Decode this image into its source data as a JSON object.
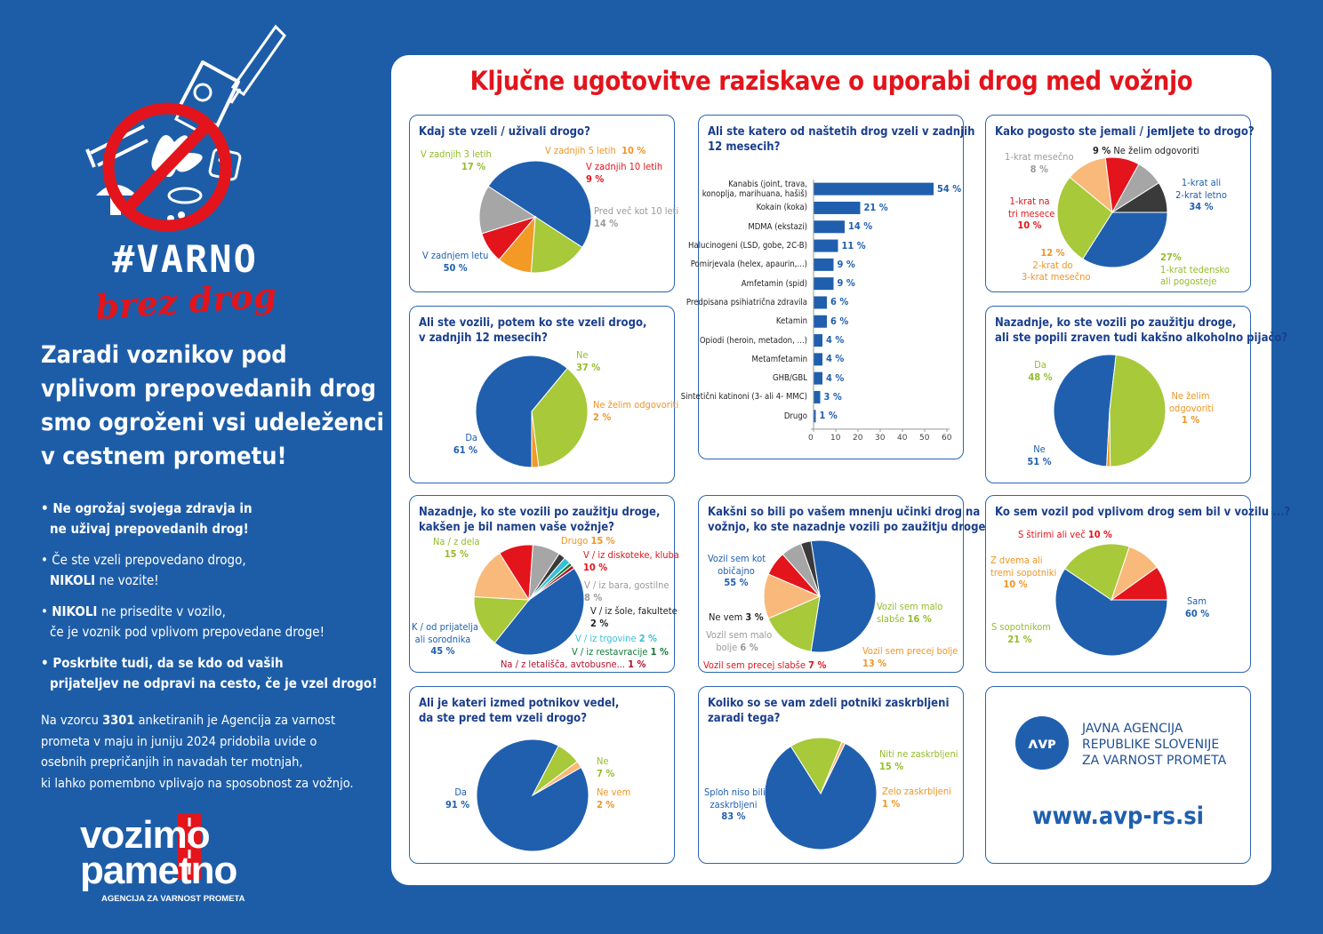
{
  "brand": {
    "hashtag": "#VARNO",
    "script": "brez drog",
    "vozimo_line1": "vozimo",
    "vozimo_line2": "pametno",
    "vozimo_sub": "AGENCIJA ZA VARNOST PROMETA",
    "red": "#e3141c",
    "blue": "#1d5da8"
  },
  "tagline": [
    "Zaradi voznikov pod",
    "vplivom prepovedanih drog",
    "smo ogroženi vsi udeleženci",
    "v cestnem prometu!"
  ],
  "bullets": {
    "b1_l1": "• Ne ogrožaj svojega zdravja in",
    "b1_l2": "ne uživaj prepovedanih drog!",
    "b2_l1": "• Če ste vzeli prepovedano drogo,",
    "b2_l2_bold": "NIKOLI",
    "b2_l2_rest": " ne vozite!",
    "b3_l1_prefix": "• ",
    "b3_l1_bold": "NIKOLI",
    "b3_l1_rest": " ne prisedite v vozilo,",
    "b3_l2": "če je voznik pod vplivom prepovedane droge!",
    "b4_l1": "• Poskrbite tudi, da se kdo od vaših",
    "b4_l2": "prijateljev ne odpravi na cesto, če je vzel drogo!"
  },
  "intro": {
    "l1_a": "Na vzorcu ",
    "l1_b": "3301",
    "l1_c": " anketiranih je Agencija za varnost",
    "l2": "prometa v maju in juniju 2024 pridobila uvide o",
    "l3": "osebnih prepričanjih in navadah ter motnjah,",
    "l4": "ki lahko pomembno vplivajo na sposobnost za vožnjo."
  },
  "main_title": "Ključne ugotovitve raziskave o uporabi drog med vožnjo",
  "agency": {
    "line1": "JAVNA AGENCIJA",
    "line2": "REPUBLIKE SLOVENIJE",
    "line3": "ZA VARNOST PROMETA",
    "website": "www.avp-rs.si"
  },
  "colors": {
    "blue": "#1f5fae",
    "green": "#a7c93a",
    "orange": "#f29a25",
    "red": "#e3141c",
    "gray": "#a6a6a6",
    "dark": "#3a3a3a",
    "lorange": "#f9b97a",
    "cyan": "#37bfd8",
    "dgreen": "#137a3a",
    "crimson": "#b0122f"
  },
  "chart_data": [
    {
      "id": "c1",
      "type": "pie",
      "title": "Kdaj ste vzeli / uživali drogo?",
      "slices": [
        {
          "label": "V zadnjem letu",
          "value": 50,
          "display": "50 %",
          "color": "blue"
        },
        {
          "label": "V zadnjih 3 letih",
          "value": 17,
          "display": "17 %",
          "color": "green"
        },
        {
          "label": "V zadnjih 5 letih",
          "value": 10,
          "display": "10 %",
          "color": "orange"
        },
        {
          "label": "V zadnjih 10 letih",
          "value": 9,
          "display": "9 %",
          "color": "red"
        },
        {
          "label": "Pred več kot 10 leti",
          "value": 14,
          "display": "14 %",
          "color": "gray"
        }
      ]
    },
    {
      "id": "c2",
      "type": "bar",
      "title_l1": "Ali ste katero od naštetih drog vzeli v zadnjih",
      "title_l2": "12 mesecih?",
      "categories": [
        [
          "Kanabis (joint, trava,",
          "konoplja, marihuana, hašiš)"
        ],
        [
          "Kokain (koka)"
        ],
        [
          "MDMA (ekstazi)"
        ],
        [
          "Halucinogeni (LSD, gobe, 2C-B)"
        ],
        [
          "Pomirjevala (helex, apaurin,...)"
        ],
        [
          "Amfetamin (spid)"
        ],
        [
          "Predpisana psihiatrična zdravila"
        ],
        [
          "Ketamin"
        ],
        [
          "Opiodi (heroin, metadon, ...)"
        ],
        [
          "Metamfetamin"
        ],
        [
          "GHB/GBL"
        ],
        [
          "Sintetični katinoni (3- ali 4- MMC)"
        ],
        [
          "Drugo"
        ]
      ],
      "values": [
        54,
        21,
        14,
        11,
        9,
        9,
        6,
        6,
        4,
        4,
        4,
        3,
        1
      ],
      "value_labels": [
        "54 %",
        "21 %",
        "14 %",
        "11 %",
        "9 %",
        "9 %",
        "6 %",
        "6 %",
        "4 %",
        "4 %",
        "4 %",
        "3 %",
        "1 %"
      ],
      "xticks": [
        "0",
        "10",
        "20",
        "30",
        "40",
        "50",
        "60"
      ],
      "xlim": [
        0,
        60
      ]
    },
    {
      "id": "c3",
      "type": "pie",
      "title": "Kako pogosto ste jemali / jemljete to drogo?",
      "slices": [
        {
          "label": "1-krat ali 2-krat letno",
          "value": 34,
          "display": "34 %",
          "color": "blue"
        },
        {
          "label": "1-krat tedensko ali pogosteje",
          "value": 27,
          "display": "27%",
          "color": "green"
        },
        {
          "label": "2-krat do 3-krat mesečno",
          "value": 12,
          "display": "12 %",
          "color": "lorange"
        },
        {
          "label": "1-krat na tri mesece",
          "value": 10,
          "display": "10 %",
          "color": "red"
        },
        {
          "label": "1-krat mesečno",
          "value": 8,
          "display": "8 %",
          "color": "gray"
        },
        {
          "label": "Ne želim odgovoriti",
          "value": 9,
          "display": "9 %",
          "color": "dark"
        }
      ]
    },
    {
      "id": "c4",
      "type": "pie",
      "title_l1": "Ali ste vozili, potem ko ste vzeli drogo,",
      "title_l2": "v zadnjih 12 mesecih?",
      "slices": [
        {
          "label": "Da",
          "value": 61,
          "display": "61 %",
          "color": "blue"
        },
        {
          "label": "Ne",
          "value": 37,
          "display": "37 %",
          "color": "green"
        },
        {
          "label": "Ne želim odgovoriti",
          "value": 2,
          "display": "2 %",
          "color": "orange"
        }
      ]
    },
    {
      "id": "c5",
      "type": "pie",
      "title_l1": "Nazadnje, ko ste vozili po zaužitju droge,",
      "title_l2": "ali ste popili zraven tudi kakšno alkoholno pijačo?",
      "slices": [
        {
          "label": "Ne",
          "value": 51,
          "display": "51 %",
          "color": "blue"
        },
        {
          "label": "Da",
          "value": 48,
          "display": "48 %",
          "color": "green"
        },
        {
          "label": "Ne želim odgovoriti",
          "value": 1,
          "display": "1 %",
          "color": "orange"
        }
      ]
    },
    {
      "id": "c6",
      "type": "pie",
      "title_l1": "Nazadnje, ko ste vozili po zaužitju droge,",
      "title_l2": "kakšen je bil namen vaše vožnje?",
      "slices": [
        {
          "label": "K / od prijatelja ali sorodnika",
          "value": 45,
          "display": "45 %",
          "color": "blue"
        },
        {
          "label": "Na / z dela",
          "value": 15,
          "display": "15 %",
          "color": "green"
        },
        {
          "label": "Drugo",
          "value": 15,
          "display": "15 %",
          "color": "lorange"
        },
        {
          "label": "V / iz diskoteke, kluba",
          "value": 10,
          "display": "10 %",
          "color": "red"
        },
        {
          "label": "V / iz bara, gostilne",
          "value": 8,
          "display": "8 %",
          "color": "gray"
        },
        {
          "label": "V / iz šole, fakultete",
          "value": 2,
          "display": "2 %",
          "color": "dark"
        },
        {
          "label": "V / iz trgovine",
          "value": 2,
          "display": "2 %",
          "color": "cyan"
        },
        {
          "label": "V / iz restavracije",
          "value": 1,
          "display": "1 %",
          "color": "dgreen"
        },
        {
          "label": "Na / z letališča, avtobusne...",
          "value": 1,
          "display": "1 %",
          "color": "crimson"
        }
      ]
    },
    {
      "id": "c7",
      "type": "pie",
      "title_l1": "Kakšni so bili po vašem mnenju učinki drog na",
      "title_l2": "vožnjo, ko ste nazadnje vozili po zaužitju droge?",
      "slices": [
        {
          "label": "Vozil sem kot običajno",
          "value": 55,
          "display": "55 %",
          "color": "blue"
        },
        {
          "label": "Vozil sem malo slabše",
          "value": 16,
          "display": "16 %",
          "color": "green"
        },
        {
          "label": "Vozil sem precej bolje",
          "value": 13,
          "display": "13 %",
          "color": "lorange"
        },
        {
          "label": "Vozil sem precej slabše",
          "value": 7,
          "display": "7 %",
          "color": "red"
        },
        {
          "label": "Vozil sem malo bolje",
          "value": 6,
          "display": "6 %",
          "color": "gray"
        },
        {
          "label": "Ne vem",
          "value": 3,
          "display": "3 %",
          "color": "dark"
        }
      ]
    },
    {
      "id": "c8",
      "type": "pie",
      "title": "Ko sem vozil pod vplivom drog sem bil v vozilu ...?",
      "slices": [
        {
          "label": "Sam",
          "value": 60,
          "display": "60 %",
          "color": "blue"
        },
        {
          "label": "S sopotnikom",
          "value": 21,
          "display": "21 %",
          "color": "green"
        },
        {
          "label": "Z dvema ali tremi sopotniki",
          "value": 10,
          "display": "10 %",
          "color": "lorange"
        },
        {
          "label": "S štirimi ali več",
          "value": 10,
          "display": "10 %",
          "color": "red"
        }
      ]
    },
    {
      "id": "c9",
      "type": "pie",
      "title_l1": "Ali je kateri izmed potnikov vedel,",
      "title_l2": "da ste pred tem vzeli drogo?",
      "slices": [
        {
          "label": "Da",
          "value": 91,
          "display": "91 %",
          "color": "blue"
        },
        {
          "label": "Ne",
          "value": 7,
          "display": "7 %",
          "color": "green"
        },
        {
          "label": "Ne vem",
          "value": 2,
          "display": "2 %",
          "color": "lorange"
        }
      ]
    },
    {
      "id": "c10",
      "type": "pie",
      "title_l1": "Koliko so se vam zdeli potniki zaskrbljeni",
      "title_l2": "zaradi tega?",
      "slices": [
        {
          "label": "Sploh niso bili zaskrbljeni",
          "value": 83,
          "display": "83 %",
          "color": "blue"
        },
        {
          "label": "Niti ne zaskrbljeni",
          "value": 15,
          "display": "15 %",
          "color": "green"
        },
        {
          "label": "Zelo zaskrbljeni",
          "value": 1,
          "display": "1 %",
          "color": "lorange"
        }
      ]
    }
  ]
}
